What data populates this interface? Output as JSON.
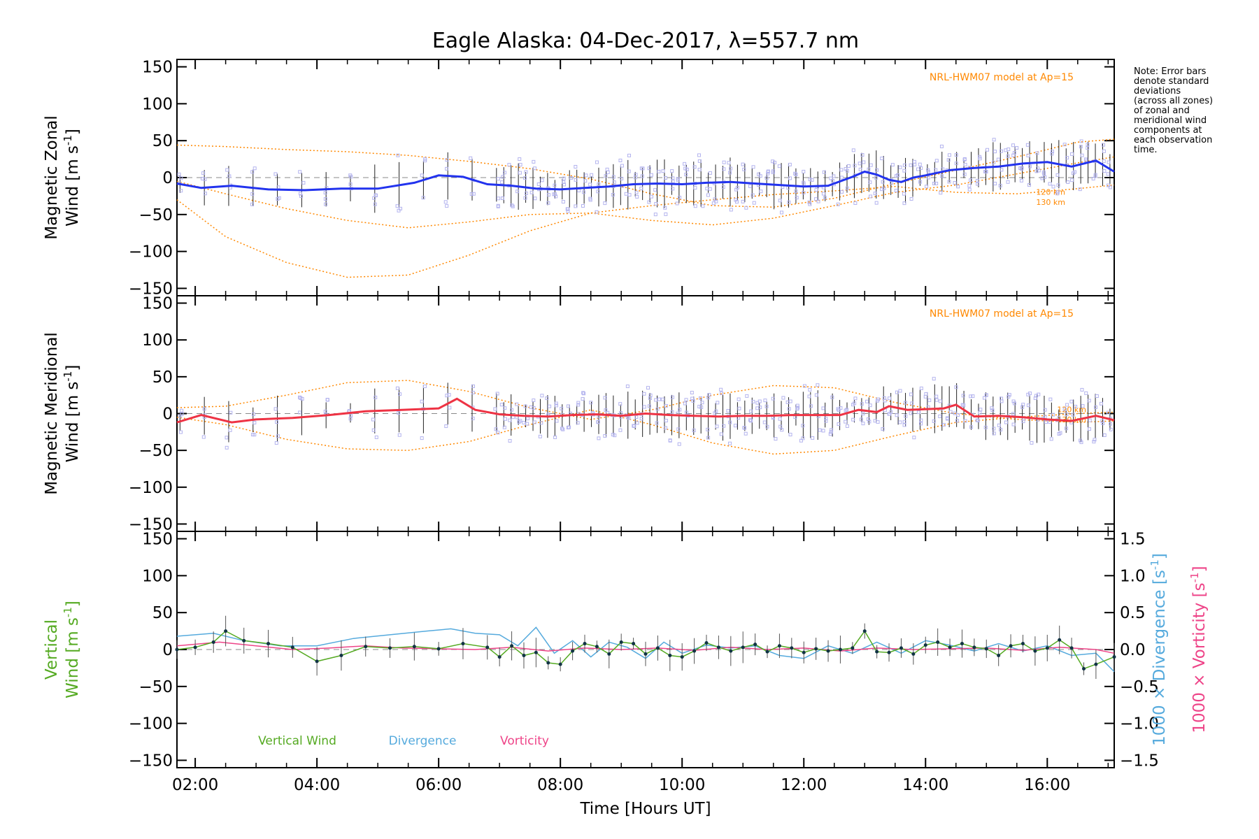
{
  "chart_data": {
    "title": "Eagle Alaska: 04-Dec-2017, λ=557.7 nm",
    "xlabel": "Time [Hours UT]",
    "xlim": [
      1.7,
      17.1
    ],
    "xticks": [
      2,
      4,
      6,
      8,
      10,
      12,
      14,
      16
    ],
    "xticklabels": [
      "02:00",
      "04:00",
      "06:00",
      "08:00",
      "10:00",
      "12:00",
      "14:00",
      "16:00"
    ],
    "note_lines": [
      "Note: Error bars",
      "denote standard",
      "deviations",
      "(across all zones)",
      "of zonal and",
      "meridional wind",
      "components at",
      "each observation",
      "time."
    ],
    "colors": {
      "zonal": "#2233ee",
      "meridional": "#ee3344",
      "vertical": "#55aa22",
      "divergence": "#55aadd",
      "vorticity": "#ee4488",
      "model": "#ff8800",
      "scatter": "#b4b4ee"
    },
    "panels": [
      {
        "type": "line",
        "name": "zonal",
        "ylabel": [
          "Magnetic Zonal",
          "Wind [m s",
          "-1",
          "]"
        ],
        "ylim": [
          -160,
          160
        ],
        "yticks": [
          150,
          100,
          50,
          0,
          -50,
          -100,
          -150
        ],
        "model_label": "NRL-HWM07 model at Ap=15",
        "model_height_labels": [
          "120 km",
          "130 km"
        ],
        "series": [
          {
            "x": [
              1.7,
              2.1,
              2.6,
              3.2,
              3.8,
              4.4,
              5.0,
              5.6,
              6.0,
              6.4,
              6.8,
              7.2,
              7.6,
              8.0,
              8.4,
              8.8,
              9.2,
              9.6,
              10.0,
              10.4,
              10.8,
              11.2,
              11.6,
              12.0,
              12.4,
              12.8,
              13.0,
              13.2,
              13.4,
              13.6,
              13.8,
              14.0,
              14.4,
              14.8,
              15.2,
              15.6,
              16.0,
              16.4,
              16.8,
              17.1
            ],
            "values": [
              -8,
              -14,
              -11,
              -16,
              -17,
              -15,
              -15,
              -7,
              3,
              1,
              -9,
              -11,
              -15,
              -16,
              -14,
              -12,
              -9,
              -8,
              -9,
              -7,
              -6,
              -8,
              -10,
              -12,
              -11,
              1,
              8,
              4,
              -3,
              -6,
              0,
              3,
              10,
              13,
              15,
              19,
              21,
              15,
              23,
              8
            ]
          }
        ],
        "model_curves": [
          {
            "x": [
              1.7,
              2.5,
              3.5,
              4.5,
              5.5,
              6.5,
              7.5,
              8.5,
              9.5,
              10.5,
              11.5,
              12.5,
              13.5,
              14.5,
              15.5,
              16.5,
              17.1
            ],
            "values": [
              44,
              42,
              38,
              35,
              30,
              22,
              12,
              -2,
              -22,
              -38,
              -40,
              -28,
              -8,
              10,
              28,
              48,
              52
            ]
          },
          {
            "x": [
              1.7,
              2.5,
              3.5,
              4.5,
              5.5,
              6.5,
              7.5,
              8.5,
              9.5,
              10.5,
              11.5,
              12.5,
              13.5,
              14.5,
              15.5,
              16.5,
              17.1
            ],
            "values": [
              -30,
              -80,
              -115,
              -135,
              -132,
              -105,
              -72,
              -48,
              -38,
              -30,
              -23,
              -18,
              -12,
              -20,
              -22,
              -15,
              -10
            ]
          },
          {
            "x": [
              1.7,
              2.5,
              3.5,
              4.5,
              5.5,
              6.5,
              7.5,
              8.5,
              9.5,
              10.5,
              11.5,
              12.5,
              13.5,
              14.5,
              15.5,
              16.5,
              17.1
            ],
            "values": [
              -5,
              -22,
              -42,
              -58,
              -68,
              -60,
              -50,
              -48,
              -58,
              -64,
              -55,
              -38,
              -20,
              -10,
              5,
              20,
              28
            ]
          }
        ]
      },
      {
        "type": "line",
        "name": "meridional",
        "ylabel": [
          "Magnetic Meridional",
          "Wind [m s",
          "-1",
          "]"
        ],
        "ylim": [
          -160,
          160
        ],
        "yticks": [
          150,
          100,
          50,
          0,
          -50,
          -100,
          -150
        ],
        "model_label": "NRL-HWM07 model at Ap=15",
        "model_height_labels": [
          "120 km",
          "130 km"
        ],
        "series": [
          {
            "x": [
              1.7,
              2.1,
              2.6,
              3.0,
              3.6,
              4.2,
              4.8,
              5.4,
              6.0,
              6.3,
              6.6,
              7.0,
              7.4,
              7.8,
              8.2,
              8.6,
              9.0,
              9.4,
              9.8,
              10.2,
              10.6,
              11.0,
              11.4,
              11.8,
              12.2,
              12.6,
              12.9,
              13.2,
              13.4,
              13.7,
              14.0,
              14.3,
              14.5,
              14.8,
              15.2,
              15.6,
              16.0,
              16.4,
              16.8,
              17.1
            ],
            "values": [
              -12,
              -2,
              -12,
              -8,
              -6,
              -2,
              3,
              5,
              7,
              20,
              5,
              -1,
              -3,
              -4,
              -2,
              -1,
              -3,
              0,
              -2,
              -3,
              -4,
              -3,
              -3,
              -2,
              -2,
              -2,
              5,
              2,
              10,
              5,
              6,
              7,
              12,
              -4,
              -3,
              -5,
              -8,
              -10,
              -3,
              -9
            ]
          }
        ],
        "model_curves": [
          {
            "x": [
              1.7,
              2.5,
              3.5,
              4.5,
              5.5,
              6.5,
              7.5,
              8.5,
              9.5,
              10.5,
              11.5,
              12.5,
              13.5,
              14.5,
              15.5,
              16.5,
              17.1
            ],
            "values": [
              8,
              10,
              25,
              42,
              45,
              30,
              8,
              -8,
              5,
              25,
              38,
              35,
              15,
              0,
              -8,
              -12,
              -10
            ]
          },
          {
            "x": [
              1.7,
              2.5,
              3.5,
              4.5,
              5.5,
              6.5,
              7.5,
              8.5,
              9.5,
              10.5,
              11.5,
              12.5,
              13.5,
              14.5,
              15.5,
              16.5,
              17.1
            ],
            "values": [
              -5,
              -15,
              -35,
              -48,
              -50,
              -38,
              -15,
              5,
              -15,
              -40,
              -55,
              -50,
              -30,
              -12,
              -5,
              0,
              2
            ]
          }
        ]
      },
      {
        "type": "line",
        "name": "vertical",
        "ylabel": [
          "Vertical",
          "Wind [m s",
          "-1",
          "]"
        ],
        "ylim": [
          -160,
          160
        ],
        "yticks": [
          150,
          100,
          50,
          0,
          -50,
          -100,
          -150
        ],
        "y2lim": [
          -1.6,
          1.6
        ],
        "y2ticks": [
          1.5,
          1.0,
          0.5,
          0.0,
          -0.5,
          -1.0,
          -1.5
        ],
        "y2labels": [
          [
            "1000 × Divergence [s",
            "-1",
            "]"
          ],
          [
            "1000 × Vorticity [s",
            "-1",
            "]"
          ]
        ],
        "legend": [
          "Vertical Wind",
          "Divergence",
          "Vorticity"
        ],
        "series": [
          {
            "name": "Vertical Wind",
            "x": [
              1.7,
              2.0,
              2.3,
              2.5,
              2.8,
              3.2,
              3.6,
              4.0,
              4.4,
              4.8,
              5.2,
              5.6,
              6.0,
              6.4,
              6.8,
              7.0,
              7.2,
              7.4,
              7.6,
              7.8,
              8.0,
              8.2,
              8.4,
              8.6,
              8.8,
              9.0,
              9.2,
              9.4,
              9.6,
              9.8,
              10.0,
              10.2,
              10.4,
              10.6,
              10.8,
              11.0,
              11.2,
              11.4,
              11.6,
              11.8,
              12.0,
              12.2,
              12.4,
              12.6,
              12.8,
              13.0,
              13.2,
              13.4,
              13.6,
              13.8,
              14.0,
              14.2,
              14.4,
              14.6,
              14.8,
              15.0,
              15.2,
              15.4,
              15.6,
              15.8,
              16.0,
              16.2,
              16.4,
              16.6,
              16.8,
              17.1
            ],
            "values": [
              0,
              3,
              10,
              25,
              12,
              8,
              3,
              -16,
              -8,
              4,
              2,
              4,
              1,
              8,
              3,
              -10,
              5,
              -8,
              -4,
              -18,
              -20,
              -2,
              8,
              4,
              -6,
              10,
              8,
              -6,
              2,
              -8,
              -10,
              -2,
              9,
              3,
              -2,
              3,
              7,
              -3,
              5,
              2,
              -4,
              1,
              -2,
              0,
              2,
              25,
              -3,
              -4,
              2,
              -6,
              6,
              10,
              3,
              8,
              3,
              1,
              -8,
              5,
              8,
              -2,
              2,
              13,
              2,
              -26,
              -20,
              -10
            ]
          },
          {
            "name": "Divergence",
            "x": [
              1.7,
              2.3,
              2.8,
              3.4,
              4.0,
              4.6,
              5.2,
              5.8,
              6.2,
              6.6,
              7.0,
              7.3,
              7.6,
              7.9,
              8.2,
              8.5,
              8.8,
              9.1,
              9.4,
              9.7,
              10.0,
              10.4,
              10.8,
              11.2,
              11.6,
              12.0,
              12.4,
              12.8,
              13.2,
              13.6,
              14.0,
              14.4,
              14.8,
              15.2,
              15.6,
              16.0,
              16.4,
              16.8,
              17.1
            ],
            "values": [
              0.18,
              0.22,
              0.12,
              0.05,
              0.05,
              0.15,
              0.2,
              0.25,
              0.28,
              0.22,
              0.2,
              0.05,
              0.3,
              -0.05,
              0.12,
              -0.1,
              0.1,
              0.03,
              -0.12,
              0.1,
              -0.05,
              0.06,
              0.02,
              0.05,
              -0.08,
              -0.12,
              0.05,
              -0.05,
              0.1,
              -0.05,
              0.12,
              0.06,
              -0.02,
              0.08,
              -0.02,
              0.05,
              -0.08,
              -0.05,
              -0.3
            ]
          },
          {
            "name": "Vorticity",
            "x": [
              1.7,
              2.4,
              3.0,
              3.6,
              4.2,
              4.8,
              5.4,
              6.0,
              6.6,
              7.2,
              7.8,
              8.4,
              9.0,
              9.6,
              10.2,
              10.8,
              11.4,
              12.0,
              12.6,
              13.2,
              13.8,
              14.4,
              15.0,
              15.6,
              16.2,
              16.8,
              17.1
            ],
            "values": [
              0.05,
              0.1,
              0.05,
              0.0,
              0.02,
              0.05,
              0.02,
              0.01,
              0.0,
              0.03,
              -0.02,
              0.02,
              0.0,
              0.02,
              -0.01,
              0.03,
              0.0,
              0.02,
              -0.02,
              0.02,
              0.0,
              0.01,
              0.02,
              -0.01,
              0.03,
              0.0,
              -0.05
            ]
          }
        ]
      }
    ]
  }
}
